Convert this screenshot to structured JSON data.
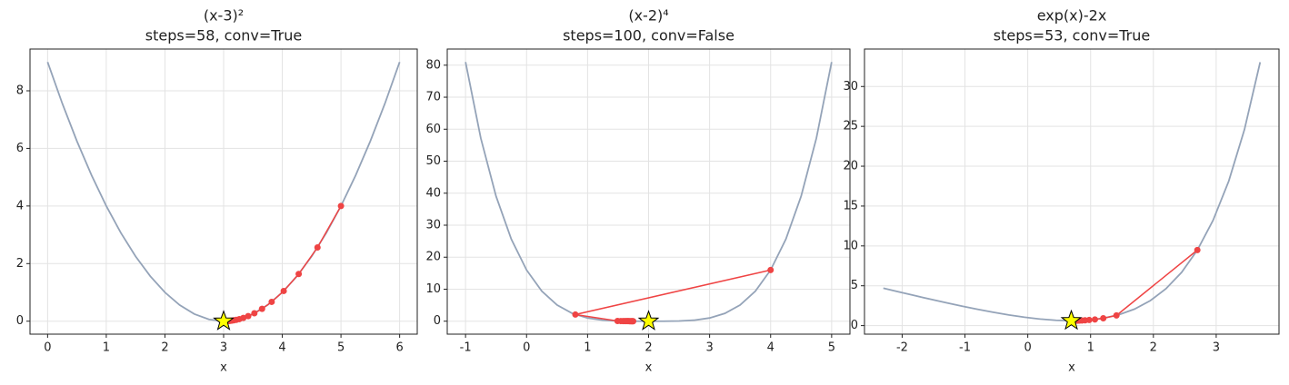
{
  "chart_data": [
    {
      "type": "line",
      "title": "(x-3)²",
      "subtitle": "steps=58, conv=True",
      "x_label": "x",
      "grid": true,
      "xlim": [
        -0.3,
        6.3
      ],
      "ylim": [
        -0.45,
        9.45
      ],
      "xticks": [
        0,
        1,
        2,
        3,
        4,
        5,
        6
      ],
      "yticks": [
        0,
        2,
        4,
        6,
        8
      ],
      "curve": {
        "color": "#94a3b8",
        "x": [
          0,
          0.25,
          0.5,
          0.75,
          1,
          1.25,
          1.5,
          1.75,
          2,
          2.25,
          2.5,
          2.75,
          3,
          3.25,
          3.5,
          3.75,
          4,
          4.25,
          4.5,
          4.75,
          5,
          5.25,
          5.5,
          5.75,
          6
        ],
        "values": [
          9,
          7.5625,
          6.25,
          5.0625,
          4,
          3.0625,
          2.25,
          1.5625,
          1,
          0.5625,
          0.25,
          0.0625,
          0,
          0.0625,
          0.25,
          0.5625,
          1,
          1.5625,
          2.25,
          3.0625,
          4,
          5.0625,
          6.25,
          7.5625,
          9
        ]
      },
      "path": {
        "color": "#ef4444",
        "x": [
          5,
          4.6,
          4.28,
          4.024,
          3.819,
          3.655,
          3.524,
          3.419,
          3.336,
          3.268,
          3.215,
          3.172,
          3.137,
          3.11,
          3.088,
          3.07
        ],
        "values": [
          4,
          2.56,
          1.638,
          1.049,
          0.671,
          0.429,
          0.275,
          0.176,
          0.113,
          0.072,
          0.046,
          0.03,
          0.019,
          0.012,
          0.008,
          0.005
        ]
      },
      "optimum": {
        "x": 3,
        "y": 0,
        "color": "#ffff00"
      }
    },
    {
      "type": "line",
      "title": "(x-2)⁴",
      "subtitle": "steps=100, conv=False",
      "x_label": "x",
      "grid": true,
      "xlim": [
        -1.3,
        5.3
      ],
      "ylim": [
        -4.05,
        85.05
      ],
      "xticks": [
        -1,
        0,
        1,
        2,
        3,
        4,
        5
      ],
      "yticks": [
        0,
        10,
        20,
        30,
        40,
        50,
        60,
        70,
        80
      ],
      "curve": {
        "color": "#94a3b8",
        "x": [
          -1,
          -0.75,
          -0.5,
          -0.25,
          0,
          0.25,
          0.5,
          0.75,
          1,
          1.25,
          1.5,
          1.75,
          2,
          2.25,
          2.5,
          2.75,
          3,
          3.25,
          3.5,
          3.75,
          4,
          4.25,
          4.5,
          4.75,
          5
        ],
        "values": [
          81,
          57.19,
          39.06,
          25.63,
          16,
          9.379,
          5.0625,
          2.441,
          1,
          0.316,
          0.0625,
          0.0039,
          0,
          0.0039,
          0.0625,
          0.316,
          1,
          2.441,
          5.0625,
          9.379,
          16,
          25.63,
          39.06,
          57.19,
          81
        ]
      },
      "path": {
        "color": "#ef4444",
        "x": [
          4,
          0.8,
          1.491,
          1.544,
          1.582,
          1.611,
          1.635,
          1.655,
          1.672,
          1.687,
          1.7,
          1.712,
          1.722,
          1.731,
          1.74,
          1.747
        ],
        "values": [
          16,
          2.0736,
          0.0672,
          0.0432,
          0.0305,
          0.0229,
          0.0178,
          0.0142,
          0.0116,
          0.0096,
          0.0081,
          0.0069,
          0.006,
          0.0052,
          0.0046,
          0.0041
        ]
      },
      "optimum": {
        "x": 2,
        "y": 0,
        "color": "#ffff00"
      }
    },
    {
      "type": "line",
      "title": "exp(x)-2x",
      "subtitle": "steps=53, conv=True",
      "x_label": "x",
      "grid": true,
      "xlim": [
        -2.6,
        4.0
      ],
      "ylim": [
        -1.07,
        34.7
      ],
      "xticks": [
        -2,
        -1,
        0,
        1,
        2,
        3
      ],
      "yticks": [
        0,
        5,
        10,
        15,
        20,
        25,
        30
      ],
      "curve": {
        "color": "#94a3b8",
        "x": [
          -2.3,
          -2.05,
          -1.8,
          -1.55,
          -1.3,
          -1.05,
          -0.8,
          -0.55,
          -0.3,
          -0.05,
          0.2,
          0.45,
          0.7,
          0.95,
          1.2,
          1.45,
          1.7,
          1.95,
          2.2,
          2.45,
          2.7,
          2.95,
          3.2,
          3.45,
          3.7
        ],
        "values": [
          4.7,
          4.229,
          3.765,
          3.312,
          2.873,
          2.45,
          2.049,
          1.677,
          1.341,
          1.051,
          0.821,
          0.668,
          0.614,
          0.686,
          0.92,
          1.363,
          2.074,
          3.129,
          4.625,
          6.688,
          9.48,
          13.206,
          18.133,
          24.6,
          33.047
        ]
      },
      "path": {
        "color": "#ef4444",
        "x": [
          2.7,
          1.412,
          1.202,
          1.069,
          0.978,
          0.912,
          0.863,
          0.826,
          0.798,
          0.776
        ],
        "values": [
          9.48,
          1.28,
          0.923,
          0.774,
          0.703,
          0.665,
          0.644,
          0.632,
          0.625,
          0.621
        ]
      },
      "optimum": {
        "x": 0.693,
        "y": 0.614,
        "color": "#ffff00"
      }
    }
  ]
}
